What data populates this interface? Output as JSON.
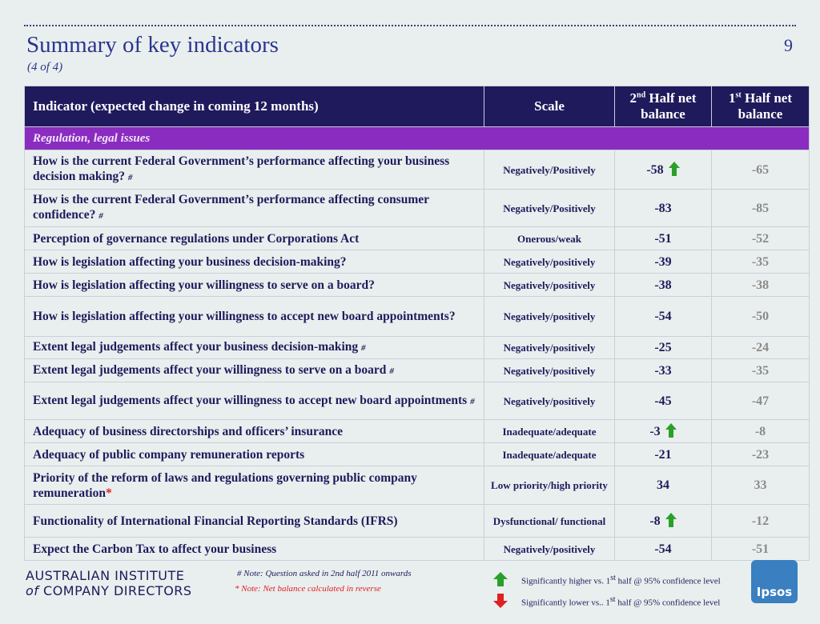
{
  "header": {
    "title": "Summary of key indicators",
    "subtitle": "(4 of 4)",
    "page_number": "9"
  },
  "table": {
    "columns": [
      {
        "text": "Indicator (expected change in coming 12 months)"
      },
      {
        "text": "Scale"
      },
      {
        "num": "2",
        "sup": "nd",
        "text": "Half net balance"
      },
      {
        "num": "1",
        "sup": "st",
        "text": "Half net balance"
      }
    ],
    "section": "Regulation, legal issues",
    "rows": [
      {
        "indicator": "How is the current Federal Government’s performance affecting your business decision making?",
        "marker": "#",
        "scale": "Negatively/Positively",
        "second_half": -58,
        "arrow": "up",
        "first_half": -65
      },
      {
        "indicator": "How is the current Federal Government’s performance affecting consumer confidence?",
        "marker": "#",
        "scale": "Negatively/Positively",
        "second_half": -83,
        "first_half": -85
      },
      {
        "indicator": "Perception of governance regulations under Corporations Act",
        "scale": "Onerous/weak",
        "second_half": -51,
        "first_half": -52
      },
      {
        "indicator": "How is legislation affecting your business decision-making?",
        "scale": "Negatively/positively",
        "second_half": -39,
        "first_half": -35
      },
      {
        "indicator": "How is legislation affecting your willingness to serve on a board?",
        "scale": "Negatively/positively",
        "second_half": -38,
        "first_half": -38
      },
      {
        "indicator": "How is legislation affecting your willingness to accept new board appointments?",
        "scale": "Negatively/positively",
        "second_half": -54,
        "first_half": -50
      },
      {
        "indicator": "Extent legal judgements affect your business decision-making",
        "marker": "#",
        "scale": "Negatively/positively",
        "second_half": -25,
        "first_half": -24
      },
      {
        "indicator": "Extent legal judgements affect your willingness to serve on a board",
        "marker": "#",
        "scale": "Negatively/positively",
        "second_half": -33,
        "first_half": -35
      },
      {
        "indicator": "Extent legal judgements affect your willingness to accept new board appointments",
        "marker": "#",
        "scale": "Negatively/positively",
        "second_half": -45,
        "first_half": -47
      },
      {
        "indicator": "Adequacy of business directorships and officers’ insurance",
        "scale": "Inadequate/adequate",
        "second_half": -3,
        "arrow": "up",
        "first_half": -8
      },
      {
        "indicator": "Adequacy of public company remuneration reports",
        "scale": "Inadequate/adequate",
        "second_half": -21,
        "first_half": -23
      },
      {
        "indicator": "Priority of the reform of laws and regulations governing public company remuneration",
        "marker": "*",
        "scale": "Low priority/high priority",
        "second_half": 34,
        "first_half": 33
      },
      {
        "indicator": "Functionality of International Financial Reporting Standards (IFRS)",
        "scale": "Dysfunctional/ functional",
        "second_half": -8,
        "arrow": "up",
        "first_half": -12
      },
      {
        "indicator": "Expect the Carbon Tax to affect your business",
        "scale": "Negatively/positively",
        "second_half": -54,
        "first_half": -51
      }
    ]
  },
  "footer": {
    "logo_line1": "AUSTRALIAN INSTITUTE",
    "logo_of": "of",
    "logo_line2": "COMPANY DIRECTORS",
    "note_hash": "#  Note: Question asked in 2nd half 2011 onwards",
    "note_star": "* Note: Net balance calculated in reverse",
    "legend_up": {
      "before": "Significantly higher vs. 1",
      "sup": "st",
      "after": " half @ 95% confidence level"
    },
    "legend_down": {
      "before": "Significantly lower vs.. 1",
      "sup": "st",
      "after": " half @ 95% confidence level"
    },
    "brand": "Ipsos"
  }
}
